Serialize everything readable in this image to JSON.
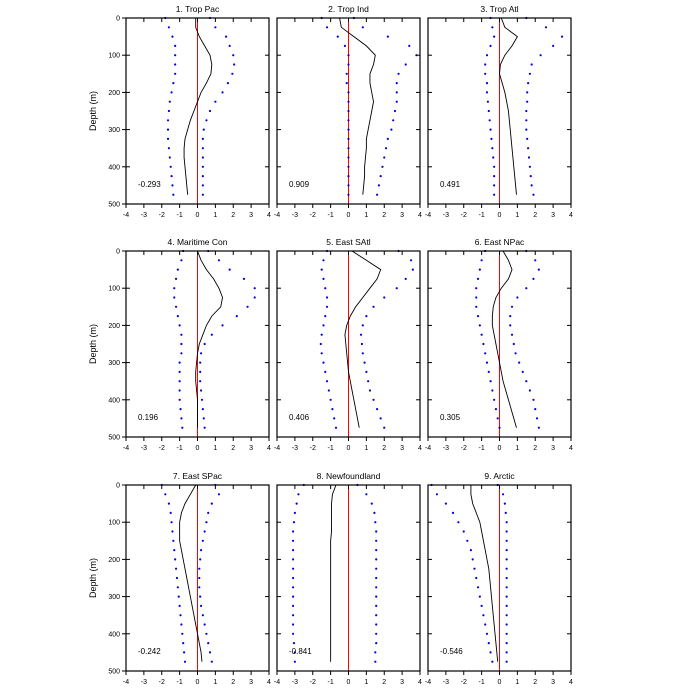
{
  "chart_data": {
    "type": "line",
    "layout": "3x3 panel grid",
    "ylabel": "Depth (m)",
    "xlim": [
      -4,
      4
    ],
    "ylim": [
      0,
      500
    ],
    "y_inverted": true,
    "xticks": [
      "-4",
      "-3",
      "-2",
      "-1",
      "0",
      "1",
      "2",
      "3",
      "4"
    ],
    "yticks": [
      "0",
      "100",
      "200",
      "300",
      "400",
      "500"
    ],
    "depths": [
      0,
      25,
      50,
      75,
      100,
      125,
      150,
      175,
      200,
      225,
      250,
      275,
      300,
      325,
      350,
      375,
      400,
      425,
      450,
      475
    ],
    "colors": {
      "central_line": "#000000",
      "bounds_dots": "#0000dd",
      "zero_line": "#ff0000"
    },
    "panels": [
      {
        "title": "1. Trop Pac",
        "value_label": "-0.293",
        "center": [
          -0.1,
          -0.1,
          0.1,
          0.4,
          0.7,
          0.8,
          0.75,
          0.5,
          0.2,
          0.0,
          -0.2,
          -0.4,
          -0.55,
          -0.7,
          -0.75,
          -0.75,
          -0.7,
          -0.65,
          -0.6,
          -0.55
        ],
        "lower": [
          -1.8,
          -1.6,
          -1.4,
          -1.25,
          -1.25,
          -1.25,
          -1.25,
          -1.35,
          -1.45,
          -1.55,
          -1.6,
          -1.65,
          -1.65,
          -1.65,
          -1.6,
          -1.55,
          -1.5,
          -1.45,
          -1.4,
          -1.35
        ],
        "upper": [
          0.7,
          1.0,
          1.6,
          1.8,
          2.0,
          2.05,
          1.95,
          1.7,
          1.4,
          1.0,
          0.7,
          0.5,
          0.35,
          0.3,
          0.3,
          0.3,
          0.3,
          0.3,
          0.3,
          0.3
        ]
      },
      {
        "title": "2. Trop Ind",
        "value_label": "0.909",
        "center": [
          -0.5,
          -0.4,
          0.3,
          1.0,
          1.5,
          1.4,
          1.2,
          1.2,
          1.3,
          1.4,
          1.3,
          1.2,
          1.1,
          1.0,
          1.0,
          0.95,
          0.9,
          0.9,
          0.85,
          0.8
        ],
        "lower": [
          -1.5,
          -1.2,
          -0.6,
          -0.2,
          0.0,
          0.0,
          -0.1,
          -0.1,
          0.0,
          0.0,
          0.0,
          0.0,
          0.0,
          0.0,
          0.0,
          0.0,
          0.0,
          0.0,
          0.0,
          0.0
        ],
        "upper": [
          0.3,
          0.8,
          2.2,
          3.4,
          3.8,
          3.2,
          2.8,
          2.7,
          2.7,
          2.7,
          2.6,
          2.5,
          2.4,
          2.2,
          2.1,
          2.0,
          1.9,
          1.8,
          1.7,
          1.6
        ]
      },
      {
        "title": "3. Trop Atl",
        "value_label": "0.491",
        "center": [
          0.1,
          0.3,
          1.0,
          0.7,
          0.3,
          0.05,
          0.0,
          0.15,
          0.3,
          0.4,
          0.5,
          0.55,
          0.6,
          0.65,
          0.7,
          0.75,
          0.8,
          0.85,
          0.9,
          0.95
        ],
        "lower": [
          -0.5,
          -0.4,
          -0.3,
          -0.5,
          -0.7,
          -0.8,
          -0.8,
          -0.7,
          -0.7,
          -0.65,
          -0.6,
          -0.55,
          -0.5,
          -0.45,
          -0.4,
          -0.35,
          -0.3,
          -0.3,
          -0.3,
          -0.3
        ],
        "upper": [
          1.5,
          2.6,
          3.5,
          3.0,
          2.3,
          1.8,
          1.7,
          1.6,
          1.55,
          1.55,
          1.5,
          1.5,
          1.5,
          1.55,
          1.6,
          1.65,
          1.7,
          1.75,
          1.8,
          1.9
        ]
      },
      {
        "title": "4. Maritime Con",
        "value_label": "0.196",
        "center": [
          0.0,
          0.2,
          0.5,
          0.9,
          1.2,
          1.4,
          1.3,
          0.8,
          0.5,
          0.3,
          0.1,
          0.0,
          -0.05,
          -0.1,
          -0.1,
          -0.05,
          0.0,
          0.0,
          0.0,
          0.0
        ],
        "lower": [
          -0.8,
          -0.9,
          -1.1,
          -1.2,
          -1.3,
          -1.3,
          -1.2,
          -1.1,
          -1.0,
          -0.9,
          -0.9,
          -0.9,
          -1.0,
          -1.0,
          -1.0,
          -1.0,
          -1.0,
          -0.95,
          -0.9,
          -0.85
        ],
        "upper": [
          0.6,
          1.2,
          1.8,
          2.6,
          3.2,
          3.2,
          2.8,
          2.2,
          1.4,
          0.8,
          0.4,
          0.2,
          0.15,
          0.15,
          0.15,
          0.2,
          0.25,
          0.3,
          0.35,
          0.4
        ]
      },
      {
        "title": "5. East SAtl",
        "value_label": "0.406",
        "center": [
          0.2,
          1.0,
          1.8,
          1.6,
          1.2,
          0.8,
          0.4,
          0.1,
          -0.1,
          -0.2,
          -0.15,
          -0.1,
          -0.05,
          0.0,
          0.1,
          0.2,
          0.3,
          0.4,
          0.5,
          0.6
        ],
        "lower": [
          -1.2,
          -1.4,
          -1.5,
          -1.4,
          -1.3,
          -1.2,
          -1.2,
          -1.3,
          -1.4,
          -1.5,
          -1.55,
          -1.5,
          -1.4,
          -1.3,
          -1.2,
          -1.1,
          -1.0,
          -0.9,
          -0.8,
          -0.7
        ],
        "upper": [
          2.8,
          3.5,
          3.6,
          3.2,
          2.7,
          2.0,
          1.4,
          1.0,
          0.8,
          0.7,
          0.75,
          0.8,
          0.9,
          1.0,
          1.1,
          1.2,
          1.4,
          1.6,
          1.8,
          2.0
        ]
      },
      {
        "title": "6. East NPac",
        "value_label": "0.305",
        "center": [
          0.2,
          0.5,
          0.7,
          0.5,
          0.1,
          -0.2,
          -0.35,
          -0.4,
          -0.4,
          -0.3,
          -0.2,
          -0.1,
          0.0,
          0.1,
          0.2,
          0.35,
          0.5,
          0.65,
          0.8,
          0.95
        ],
        "lower": [
          -0.8,
          -1.0,
          -1.1,
          -1.2,
          -1.3,
          -1.3,
          -1.3,
          -1.2,
          -1.1,
          -1.0,
          -0.9,
          -0.8,
          -0.7,
          -0.6,
          -0.5,
          -0.4,
          -0.3,
          -0.2,
          -0.1,
          0.0
        ],
        "upper": [
          1.5,
          2.0,
          2.2,
          1.9,
          1.5,
          1.0,
          0.7,
          0.6,
          0.6,
          0.7,
          0.8,
          0.9,
          1.1,
          1.3,
          1.5,
          1.7,
          1.9,
          2.0,
          2.1,
          2.2
        ]
      },
      {
        "title": "7. East SPac",
        "value_label": "-0.242",
        "center": [
          -0.1,
          -0.4,
          -0.7,
          -0.9,
          -1.0,
          -1.0,
          -1.0,
          -0.9,
          -0.8,
          -0.7,
          -0.6,
          -0.5,
          -0.4,
          -0.3,
          -0.2,
          -0.1,
          0.0,
          0.1,
          0.2,
          0.25
        ],
        "lower": [
          -2.0,
          -1.8,
          -1.6,
          -1.5,
          -1.45,
          -1.4,
          -1.35,
          -1.3,
          -1.25,
          -1.2,
          -1.15,
          -1.1,
          -1.05,
          -1.0,
          -0.95,
          -0.9,
          -0.85,
          -0.8,
          -0.75,
          -0.7
        ],
        "upper": [
          1.0,
          1.2,
          0.8,
          0.6,
          0.5,
          0.4,
          0.3,
          0.2,
          0.15,
          0.1,
          0.1,
          0.1,
          0.15,
          0.2,
          0.3,
          0.4,
          0.5,
          0.6,
          0.7,
          0.8
        ]
      },
      {
        "title": "8. Newfoundland",
        "value_label": "-0.841",
        "center": [
          -0.7,
          -0.9,
          -0.95,
          -0.95,
          -0.95,
          -0.95,
          -1.0,
          -1.0,
          -1.0,
          -1.0,
          -1.0,
          -1.0,
          -1.0,
          -1.0,
          -1.0,
          -1.0,
          -1.0,
          -1.0,
          -1.0,
          -1.0
        ],
        "lower": [
          -2.5,
          -2.8,
          -2.9,
          -3.0,
          -3.05,
          -3.1,
          -3.1,
          -3.1,
          -3.1,
          -3.1,
          -3.1,
          -3.1,
          -3.1,
          -3.1,
          -3.1,
          -3.1,
          -3.1,
          -3.05,
          -3.0,
          -3.0
        ],
        "upper": [
          0.5,
          1.0,
          1.3,
          1.45,
          1.5,
          1.55,
          1.55,
          1.55,
          1.55,
          1.55,
          1.55,
          1.55,
          1.55,
          1.55,
          1.55,
          1.55,
          1.55,
          1.55,
          1.5,
          1.5
        ]
      },
      {
        "title": "9. Arctic",
        "value_label": "-0.546",
        "center": [
          -1.6,
          -1.6,
          -1.5,
          -1.3,
          -1.1,
          -1.0,
          -0.9,
          -0.8,
          -0.7,
          -0.6,
          -0.55,
          -0.5,
          -0.45,
          -0.4,
          -0.35,
          -0.3,
          -0.25,
          -0.2,
          -0.15,
          -0.1
        ],
        "lower": [
          -3.8,
          -3.5,
          -3.0,
          -2.6,
          -2.3,
          -2.0,
          -1.8,
          -1.6,
          -1.5,
          -1.4,
          -1.3,
          -1.2,
          -1.1,
          -1.0,
          -0.9,
          -0.8,
          -0.7,
          -0.6,
          -0.5,
          -0.4
        ],
        "upper": [
          -0.1,
          0.2,
          0.3,
          0.35,
          0.4,
          0.4,
          0.4,
          0.4,
          0.4,
          0.4,
          0.4,
          0.4,
          0.4,
          0.4,
          0.4,
          0.4,
          0.4,
          0.4,
          0.4,
          0.4
        ]
      }
    ]
  }
}
